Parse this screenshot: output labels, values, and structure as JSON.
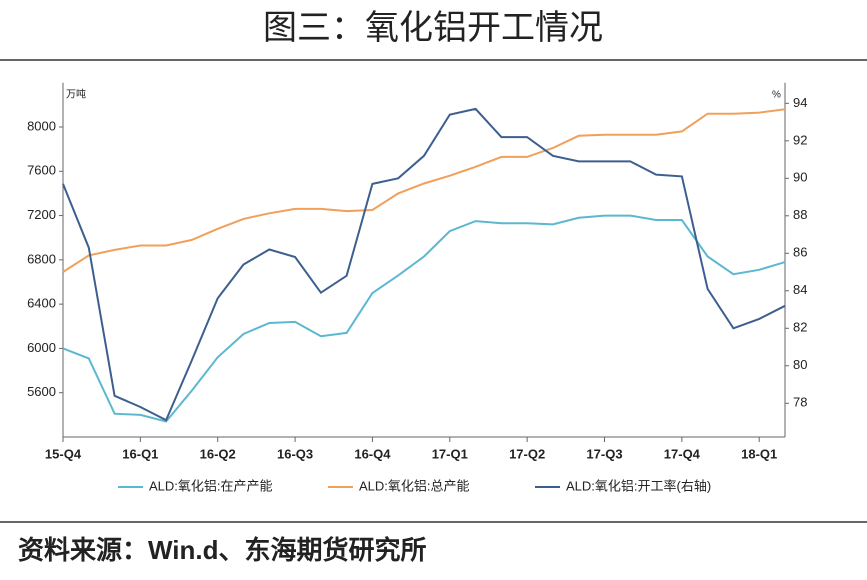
{
  "header": {
    "title": "图三：氧化铝开工情况"
  },
  "chart_data": {
    "type": "line",
    "y_unit": "万吨",
    "y2_unit": "%",
    "categories": [
      "15-Q4",
      null,
      null,
      "16-Q1",
      null,
      null,
      "16-Q2",
      null,
      null,
      "16-Q3",
      null,
      null,
      "16-Q4",
      null,
      null,
      "17-Q1",
      null,
      null,
      "17-Q2",
      null,
      null,
      "17-Q3",
      null,
      null,
      "17-Q4",
      null,
      null,
      "18-Q1",
      null
    ],
    "series": [
      {
        "name": "ALD:氧化铝:在产产能",
        "color": "#5bb8d0",
        "values": [
          6000,
          5910,
          5410,
          5400,
          5340,
          5620,
          5920,
          6130,
          6230,
          6240,
          6110,
          6140,
          6500,
          6660,
          6830,
          7060,
          7150,
          7130,
          7130,
          7120,
          7180,
          7200,
          7200,
          7160,
          7160,
          6830,
          6670,
          6710,
          6780
        ]
      },
      {
        "name": "ALD:氧化铝:总产能",
        "color": "#f0a05a",
        "values": [
          6690,
          6840,
          6890,
          6930,
          6930,
          6980,
          7080,
          7170,
          7220,
          7260,
          7260,
          7240,
          7250,
          7400,
          7490,
          7560,
          7640,
          7730,
          7730,
          7810,
          7920,
          7930,
          7930,
          7930,
          7960,
          8120,
          8120,
          8130,
          8160
        ]
      },
      {
        "name": "ALD:氧化铝:开工率(右轴)",
        "color": "#3d5f8f",
        "axis": "y2",
        "values": [
          89.7,
          86.3,
          78.4,
          77.8,
          77.1,
          80.3,
          83.6,
          85.4,
          86.2,
          85.8,
          83.9,
          84.8,
          89.7,
          90.0,
          91.2,
          93.4,
          93.7,
          92.2,
          92.2,
          91.2,
          90.9,
          90.9,
          90.9,
          90.2,
          90.1,
          84.1,
          82.0,
          82.5,
          83.2
        ]
      }
    ],
    "ylim": [
      5200,
      8400
    ],
    "yticks": [
      5600,
      6000,
      6400,
      6800,
      7200,
      7600,
      8000
    ],
    "y2lim": [
      76.2,
      95.1
    ],
    "y2ticks": [
      78,
      80,
      82,
      84,
      86,
      88,
      90,
      92,
      94
    ],
    "grid": false,
    "legend": "bottom"
  },
  "footer": {
    "source": "资料来源：Win.d、东海期货研究所"
  }
}
